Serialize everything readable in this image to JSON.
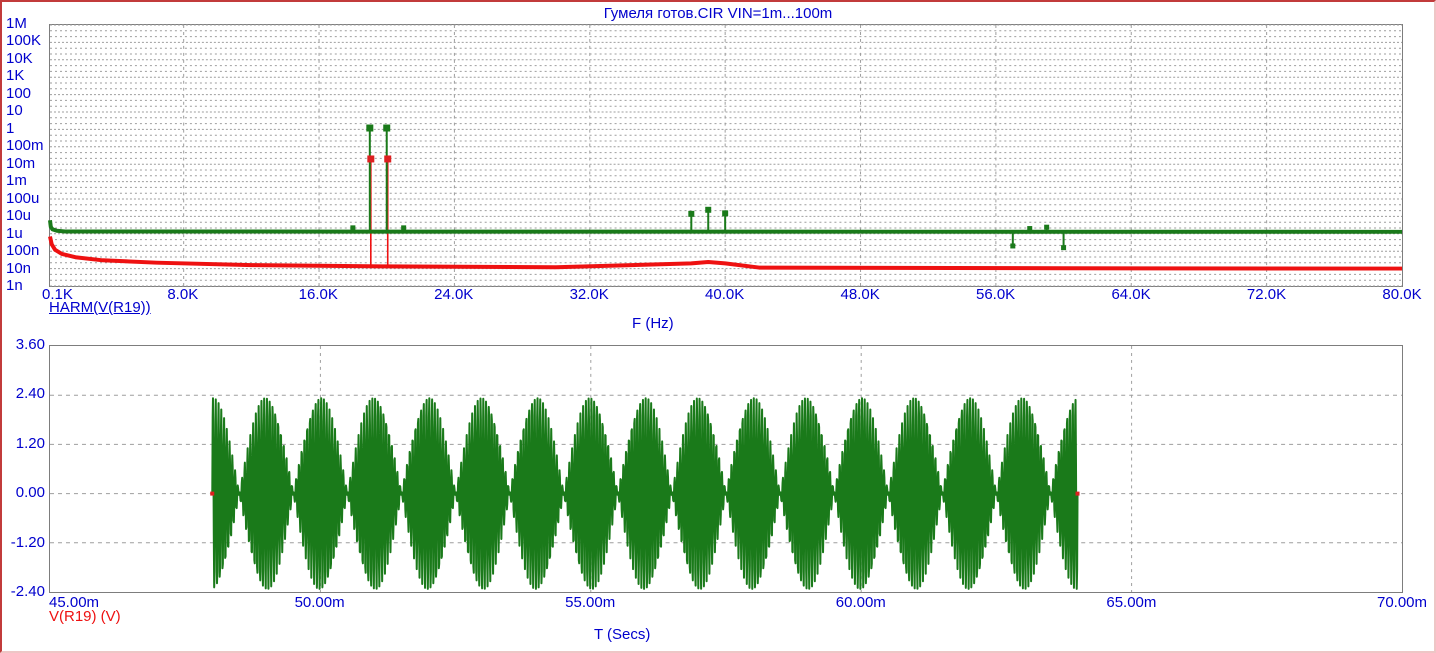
{
  "title": "Гумеля готов.CIR VIN=1m...100m",
  "colors": {
    "accent_blue": "#0000cd",
    "curve_green": "#1a7a1a",
    "curve_red": "#ee1111",
    "marker_red": "#dd2020",
    "grid_gray": "#9e9e9e",
    "plot_border_gray": "#7d7d7d",
    "frame_red": "#c23b3b",
    "frame_pink": "#eec6c6",
    "background": "#ffffff"
  },
  "chart_data": [
    {
      "type": "line",
      "role": "harmonic-spectrum",
      "title": "Гумеля готов.CIR VIN=1m...100m",
      "xlabel": "F (Hz)",
      "curve_label": "HARM(V(R19))",
      "x_scale": "linear",
      "y_scale": "log",
      "xlim_hz": [
        100,
        80000
      ],
      "ylim": [
        1e-09,
        1000000
      ],
      "grid": true,
      "legend_position": "below-left",
      "x_ticks": {
        "values": [
          100,
          8000,
          16000,
          24000,
          32000,
          40000,
          48000,
          56000,
          64000,
          72000,
          80000
        ],
        "labels": [
          "0.1K",
          "8.0K",
          "16.0K",
          "24.0K",
          "32.0K",
          "40.0K",
          "48.0K",
          "56.0K",
          "64.0K",
          "72.0K",
          "80.0K"
        ]
      },
      "y_ticks": {
        "values": [
          1000000,
          100000,
          10000,
          1000,
          100,
          10,
          1,
          0.1,
          0.01,
          0.001,
          0.0001,
          1e-05,
          1e-06,
          1e-07,
          1e-08,
          1e-09
        ],
        "labels": [
          "1M",
          "100K",
          "10K",
          "1K",
          "100",
          "10",
          "1",
          "100m",
          "10m",
          "1m",
          "100u",
          "10u",
          "1u",
          "100n",
          "10n",
          "1n"
        ]
      },
      "series": [
        {
          "name": "HARM(V(R19)) spectrum (green)",
          "color_key": "curve_green",
          "baseline_points_hz_v": [
            [
              100,
              6e-06
            ],
            [
              150,
              2.5e-06
            ],
            [
              250,
              1.8e-06
            ],
            [
              500,
              1.5e-06
            ],
            [
              1000,
              1.35e-06
            ],
            [
              80000,
              1.3e-06
            ]
          ],
          "spikes_hz_v": [
            [
              18000,
              2.2e-06
            ],
            [
              19000,
              1.2
            ],
            [
              20000,
              1.2
            ],
            [
              21000,
              2.2e-06
            ],
            [
              38000,
              1.4e-05
            ],
            [
              39000,
              2.4e-05
            ],
            [
              40000,
              1.5e-05
            ],
            [
              57000,
              2e-07
            ],
            [
              58000,
              2e-06
            ],
            [
              59000,
              2.4e-06
            ],
            [
              60000,
              1.6e-07
            ]
          ]
        },
        {
          "name": "noise floor (red)",
          "color_key": "curve_red",
          "baseline_points_hz_v": [
            [
              100,
              7e-07
            ],
            [
              200,
              2.5e-07
            ],
            [
              400,
              1.2e-07
            ],
            [
              800,
              7e-08
            ],
            [
              1600,
              4.5e-08
            ],
            [
              3200,
              3e-08
            ],
            [
              6400,
              2.2e-08
            ],
            [
              12000,
              1.6e-08
            ],
            [
              20000,
              1.35e-08
            ],
            [
              30000,
              1.2e-08
            ],
            [
              38000,
              2e-08
            ],
            [
              39000,
              2.4e-08
            ],
            [
              40000,
              2e-08
            ],
            [
              42000,
              1.15e-08
            ],
            [
              60000,
              1.05e-08
            ],
            [
              80000,
              1e-08
            ]
          ],
          "spikes_hz_v": [
            [
              19000,
              0.02
            ],
            [
              20000,
              0.02
            ]
          ]
        }
      ]
    },
    {
      "type": "line",
      "role": "transient-waveform",
      "xlabel": "T (Secs)",
      "curve_label": "V(R19) (V)",
      "x_scale": "linear",
      "y_scale": "linear",
      "xlim_s": [
        0.045,
        0.07
      ],
      "ylim_v": [
        -2.4,
        3.6
      ],
      "grid": true,
      "x_ticks": {
        "values": [
          0.045,
          0.05,
          0.055,
          0.06,
          0.065,
          0.07
        ],
        "labels": [
          "45.00m",
          "50.00m",
          "55.00m",
          "60.00m",
          "65.00m",
          "70.00m"
        ]
      },
      "y_ticks": {
        "values": [
          3.6,
          2.4,
          1.2,
          0,
          -1.2,
          -2.4
        ],
        "labels": [
          "3.60",
          "2.40",
          "1.20",
          "0.00",
          "-1.20",
          "-2.40"
        ]
      },
      "grid_x_values": [
        0.05,
        0.055,
        0.06,
        0.065
      ],
      "grid_y_values": [
        2.4,
        1.2,
        0,
        -1.2
      ],
      "signal": {
        "kind": "two_tone_sum",
        "f1_hz": 19000,
        "f2_hz": 20000,
        "amplitude_each_v": 1.19,
        "t_start_s": 0.048,
        "t_end_s": 0.064,
        "envelope_peak_v": 2.38,
        "beat_period_s": 0.001
      },
      "endpoint_marker_v": 0.0
    }
  ]
}
